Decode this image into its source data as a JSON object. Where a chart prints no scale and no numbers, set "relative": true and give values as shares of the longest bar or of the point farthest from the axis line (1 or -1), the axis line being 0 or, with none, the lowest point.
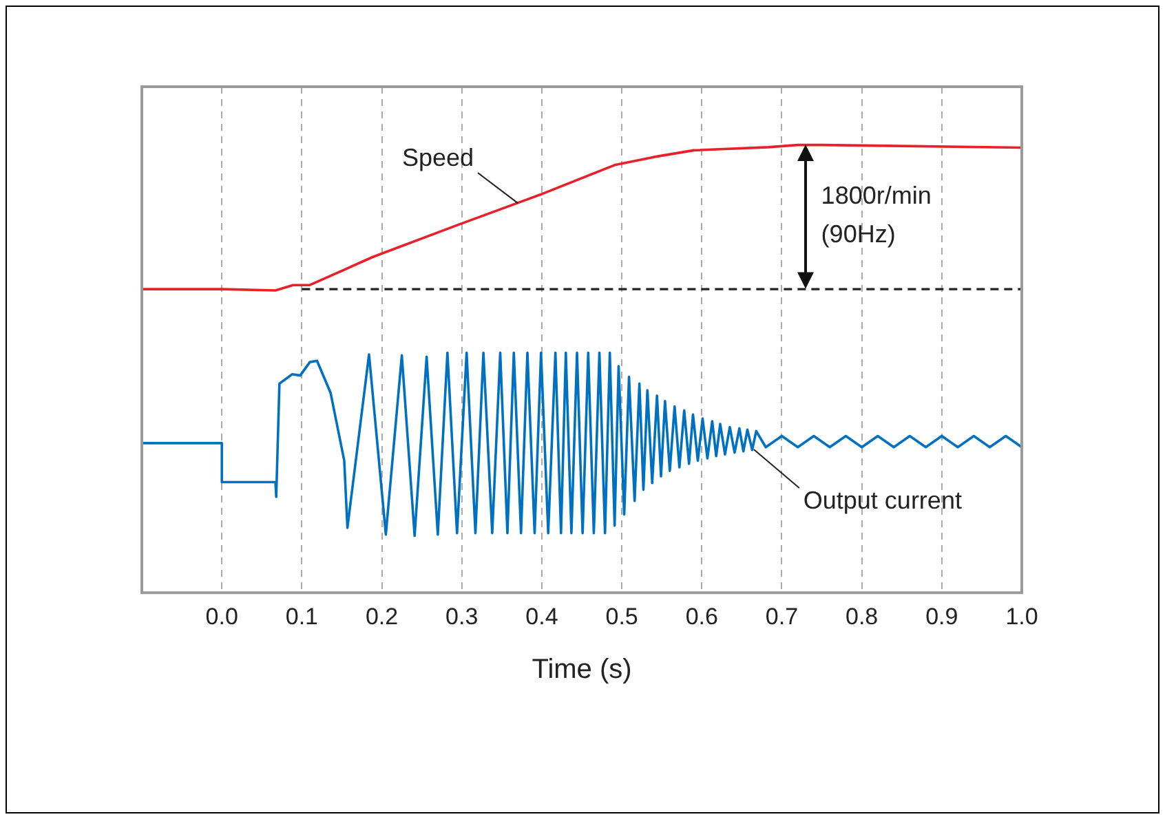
{
  "chart_data": {
    "type": "line",
    "relative": true,
    "xlabel": "Time (s)",
    "xlim": [
      -0.1,
      1.0
    ],
    "xticks": [
      {
        "value": 0,
        "label": "0.0"
      },
      {
        "value": 0.1,
        "label": "0.1"
      },
      {
        "value": 0.2,
        "label": "0.2"
      },
      {
        "value": 0.3,
        "label": "0.3"
      },
      {
        "value": 0.4,
        "label": "0.4"
      },
      {
        "value": 0.5,
        "label": "0.5"
      },
      {
        "value": 0.6,
        "label": "0.6"
      },
      {
        "value": 0.7,
        "label": "0.7"
      },
      {
        "value": 0.8,
        "label": "0.8"
      },
      {
        "value": 0.9,
        "label": "0.9"
      },
      {
        "value": 1.0,
        "label": "1.0"
      }
    ],
    "grid": "x",
    "legend": false,
    "marker": "none",
    "line_style": "solid",
    "series": [
      {
        "color": "#e8202a",
        "x": [
          -0.1,
          0.0,
          0.067,
          0.089,
          0.11,
          0.189,
          0.296,
          0.398,
          0.491,
          0.54,
          0.59,
          0.683,
          0.72,
          0.75,
          1.0
        ],
        "values": [
          0.678,
          0.678,
          0.675,
          0.687,
          0.687,
          0.75,
          0.822,
          0.889,
          0.955,
          0.973,
          0.988,
          0.995,
          1.0,
          1.0,
          0.994
        ]
      },
      {
        "color": "#0070c0",
        "x": [
          -0.1,
          0.0,
          0.0,
          0.067,
          0.068,
          0.072,
          0.088,
          0.098,
          0.11,
          0.119,
          0.136,
          0.153,
          0.157,
          0.184,
          0.205,
          0.225,
          0.241,
          0.256,
          0.27,
          0.282,
          0.294,
          0.306,
          0.317,
          0.327,
          0.338,
          0.348,
          0.357,
          0.365,
          0.374,
          0.382,
          0.391,
          0.399,
          0.408,
          0.417,
          0.424,
          0.43,
          0.437,
          0.444,
          0.451,
          0.458,
          0.465,
          0.472,
          0.479,
          0.485,
          0.491,
          0.496,
          0.503,
          0.509,
          0.516,
          0.522,
          0.527,
          0.532,
          0.538,
          0.544,
          0.549,
          0.554,
          0.56,
          0.566,
          0.572,
          0.578,
          0.584,
          0.589,
          0.595,
          0.601,
          0.607,
          0.613,
          0.618,
          0.623,
          0.629,
          0.635,
          0.641,
          0.647,
          0.652,
          0.657,
          0.663,
          0.668,
          0.68,
          0.7,
          0.72,
          0.74,
          0.76,
          0.78,
          0.8,
          0.82,
          0.84,
          0.86,
          0.88,
          0.9,
          0.92,
          0.94,
          0.96,
          0.98,
          1.0
        ],
        "values": [
          0.334,
          0.334,
          0.247,
          0.247,
          0.214,
          0.467,
          0.488,
          0.485,
          0.515,
          0.518,
          0.446,
          0.295,
          0.145,
          0.532,
          0.13,
          0.53,
          0.127,
          0.527,
          0.13,
          0.536,
          0.133,
          0.536,
          0.133,
          0.536,
          0.133,
          0.536,
          0.133,
          0.536,
          0.133,
          0.536,
          0.133,
          0.536,
          0.133,
          0.536,
          0.133,
          0.536,
          0.133,
          0.536,
          0.133,
          0.536,
          0.133,
          0.536,
          0.133,
          0.536,
          0.15,
          0.506,
          0.175,
          0.482,
          0.205,
          0.467,
          0.23,
          0.452,
          0.245,
          0.44,
          0.26,
          0.428,
          0.272,
          0.416,
          0.28,
          0.407,
          0.288,
          0.398,
          0.295,
          0.389,
          0.3,
          0.383,
          0.305,
          0.377,
          0.309,
          0.37,
          0.313,
          0.367,
          0.316,
          0.364,
          0.319,
          0.361,
          0.325,
          0.35,
          0.325,
          0.35,
          0.325,
          0.35,
          0.325,
          0.35,
          0.325,
          0.35,
          0.325,
          0.35,
          0.325,
          0.35,
          0.325,
          0.35,
          0.325
        ]
      }
    ],
    "ref_lines": [
      {
        "axis": "y",
        "value": 0.678,
        "color": "#222222",
        "line_style": "dashed"
      }
    ],
    "annotations": [
      {
        "text": "Speed",
        "x": 0.37,
        "y": 0.87
      },
      "1800r/min\n(90Hz)",
      {
        "text": "Output current",
        "x": 0.665,
        "y": 0.32
      }
    ]
  }
}
